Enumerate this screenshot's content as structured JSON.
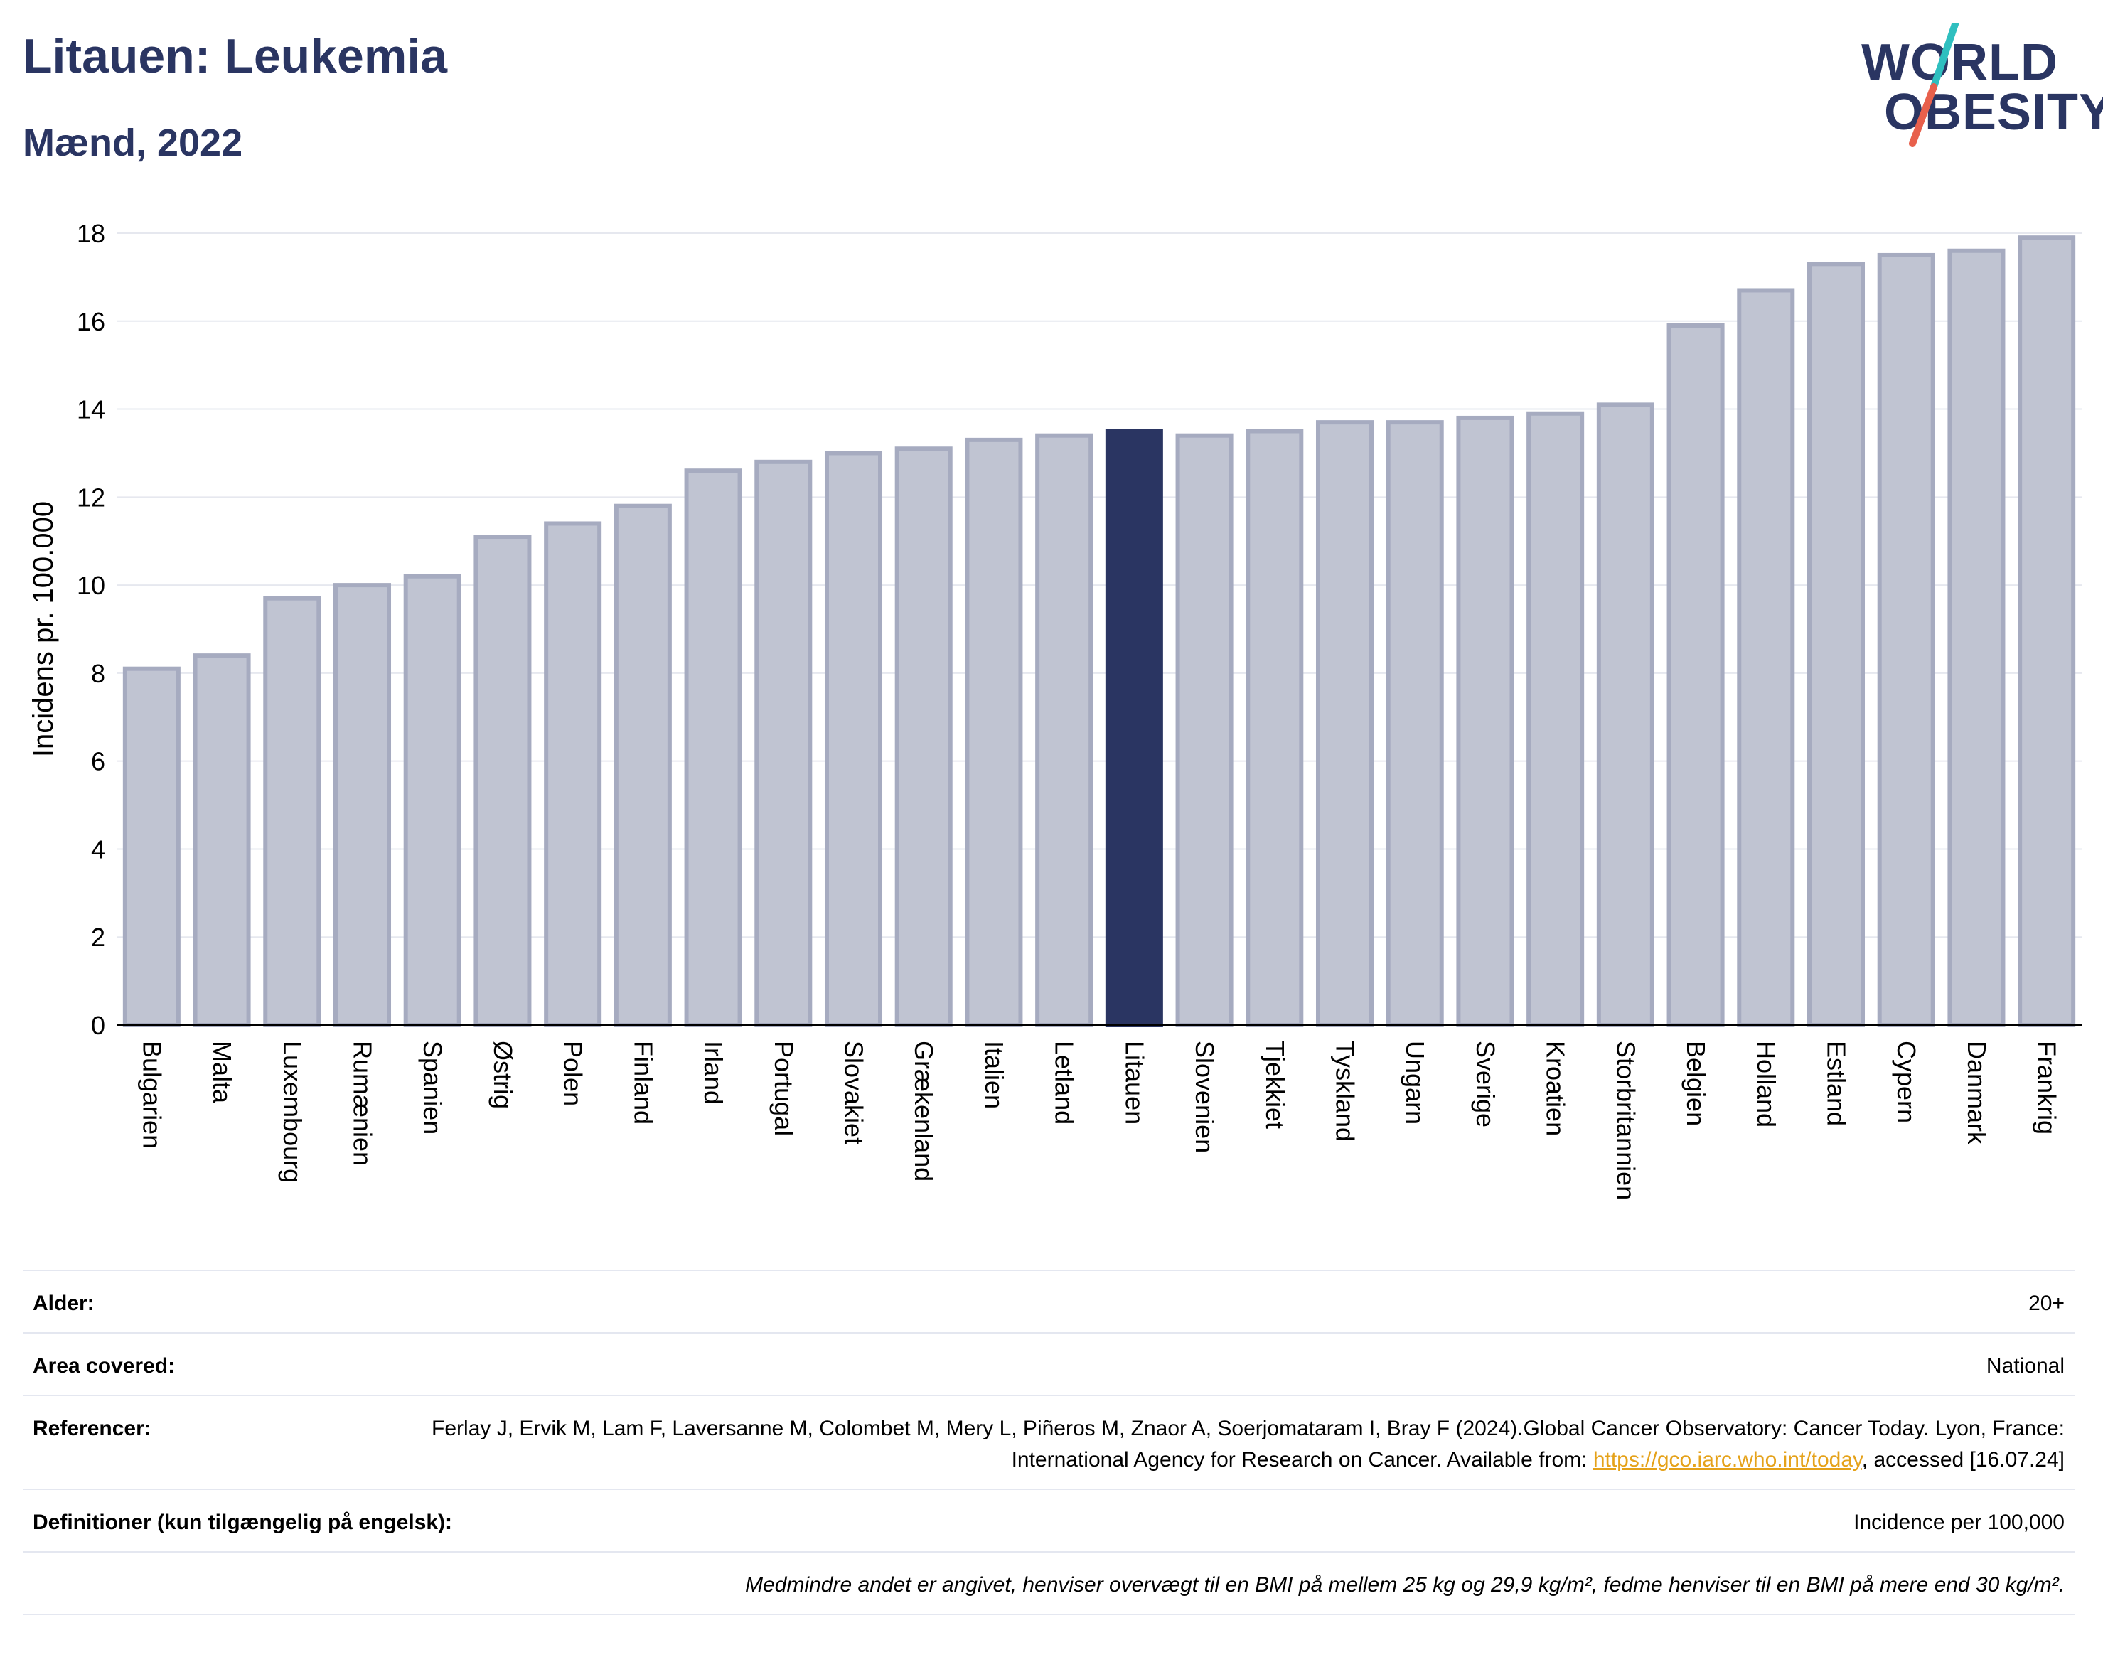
{
  "header": {
    "title": "Litauen: Leukemia",
    "subtitle": "Mænd, 2022"
  },
  "logo": {
    "line1": "WORLD",
    "line2": "OBESITY",
    "colors": {
      "text": "#2a3562",
      "slash_top": "#2fbfbf",
      "slash_bottom": "#e8604c"
    }
  },
  "colors": {
    "bar_fill": "#c0c4d2",
    "bar_stroke": "#a6abc0",
    "highlight_fill": "#2a3562",
    "grid": "#e6e8ef",
    "axis": "#000000"
  },
  "chart_data": {
    "type": "bar",
    "title": "",
    "xlabel": "",
    "ylabel": "Incidens pr. 100.000",
    "ylim": [
      0,
      18
    ],
    "yticks": [
      0,
      2,
      4,
      6,
      8,
      10,
      12,
      14,
      16,
      18
    ],
    "grid": "horizontal",
    "highlight": "Litauen",
    "categories": [
      "Bulgarien",
      "Malta",
      "Luxembourg",
      "Rumænien",
      "Spanien",
      "Østrig",
      "Polen",
      "Finland",
      "Irland",
      "Portugal",
      "Slovakiet",
      "Grækenland",
      "Italien",
      "Letland",
      "Litauen",
      "Slovenien",
      "Tjekkiet",
      "Tyskland",
      "Ungarn",
      "Sverige",
      "Kroatien",
      "Storbritannien",
      "Belgien",
      "Holland",
      "Estland",
      "Cypern",
      "Danmark",
      "Frankrig"
    ],
    "values": [
      8.1,
      8.4,
      9.7,
      10.0,
      10.2,
      11.1,
      11.4,
      11.8,
      12.6,
      12.8,
      13.0,
      13.1,
      13.3,
      13.4,
      13.5,
      13.4,
      13.5,
      13.7,
      13.7,
      13.8,
      13.9,
      14.1,
      15.9,
      16.7,
      17.3,
      17.5,
      17.6,
      17.9
    ]
  },
  "meta": {
    "age_label": "Alder:",
    "age_value": "20+",
    "area_label": "Area covered:",
    "area_value": "National",
    "ref_label": "Referencer:",
    "ref_text_1": "Ferlay J, Ervik M, Lam F, Laversanne M, Colombet M, Mery L, Piñeros M, Znaor A, Soerjomataram I, Bray F (2024).Global Cancer Observatory: Cancer Today. Lyon, France: International Agency for Research on Cancer. Available from: ",
    "ref_link": "https://gco.iarc.who.int/today",
    "ref_text_2": ", accessed [16.07.24]",
    "def_label": "Definitioner (kun tilgængelig på engelsk):",
    "def_value": "Incidence per 100,000",
    "note": "Medmindre andet er angivet, henviser overvægt til en BMI på mellem 25 kg og 29,9 kg/m², fedme henviser til en BMI på mere end 30 kg/m²."
  }
}
